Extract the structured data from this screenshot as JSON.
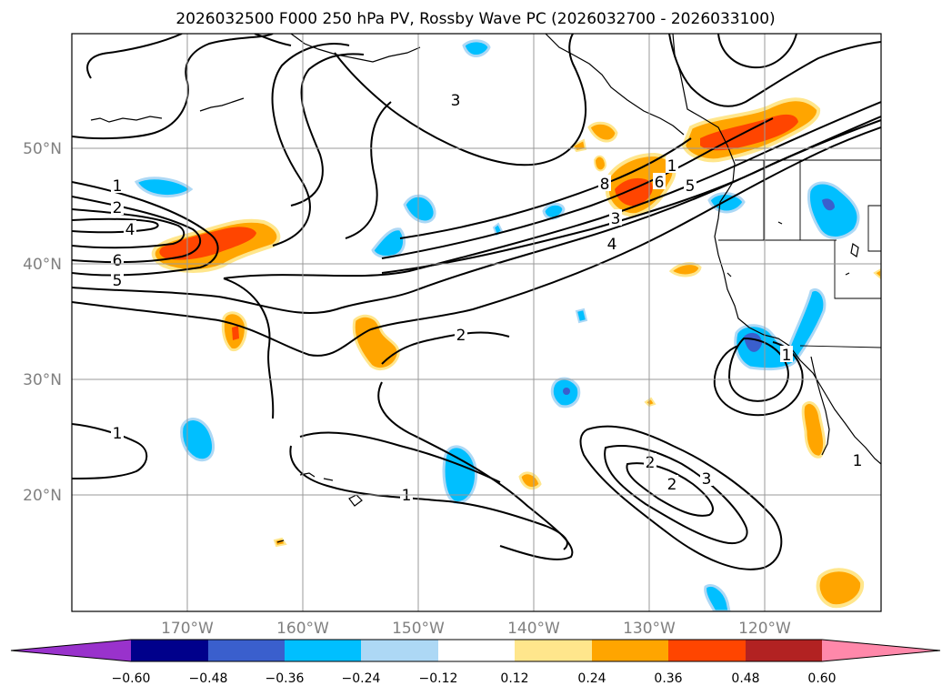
{
  "figure": {
    "title": "2026032500 F000 250 hPa PV, Rossby Wave PC (2026032700 - 2026033100)"
  },
  "map": {
    "region": "North Pacific",
    "projection": "cylindrical",
    "lat_range": [
      10,
      60
    ],
    "lon_range": [
      -180,
      -110
    ],
    "gridlines": true,
    "lat_labels": [
      "50°N",
      "40°N",
      "30°N",
      "20°N"
    ],
    "lon_labels": [
      "170°W",
      "160°W",
      "150°W",
      "140°W",
      "130°W",
      "120°W"
    ],
    "contour_labels": [
      "1",
      "2",
      "4",
      "6",
      "5",
      "3",
      "8",
      "1",
      "6",
      "5",
      "3",
      "4",
      "2",
      "1",
      "1",
      "2",
      "2",
      "3",
      "1",
      "1"
    ]
  },
  "colorbar": {
    "tick_labels": [
      "−0.60",
      "−0.48",
      "−0.36",
      "−0.24",
      "−0.12",
      "0.12",
      "0.24",
      "0.36",
      "0.48",
      "0.60"
    ],
    "bins": [
      {
        "range": "< -0.60",
        "color": "#9932cc"
      },
      {
        "range": "-0.60 to -0.48",
        "color": "#00008b"
      },
      {
        "range": "-0.48 to -0.36",
        "color": "#3a5fcd"
      },
      {
        "range": "-0.36 to -0.24",
        "color": "#00bfff"
      },
      {
        "range": "-0.24 to -0.12",
        "color": "#add8f5"
      },
      {
        "range": "-0.12 to 0.12",
        "color": "#ffffff"
      },
      {
        "range": "0.12 to 0.24",
        "color": "#ffe68c"
      },
      {
        "range": "0.24 to 0.36",
        "color": "#ffa500"
      },
      {
        "range": "0.36 to 0.48",
        "color": "#ff4500"
      },
      {
        "range": "0.48 to 0.60",
        "color": "#b22222"
      },
      {
        "range": "> 0.60",
        "color": "#ff88aa"
      }
    ],
    "extend": "both"
  }
}
